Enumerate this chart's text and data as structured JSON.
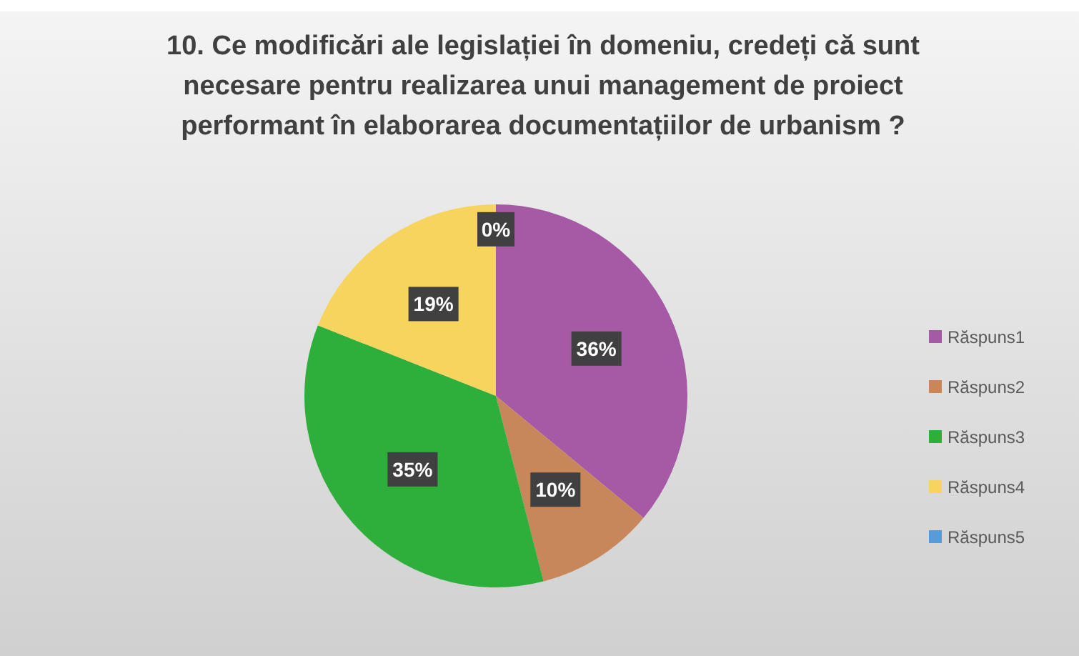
{
  "chart_data": {
    "type": "pie",
    "title": "10. Ce modificări ale legislației în domeniu, credeți că sunt necesare pentru realizarea unui management de proiect performant în elaborarea documentațiilor de urbanism ?",
    "categories": [
      "Răspuns1",
      "Răspuns2",
      "Răspuns3",
      "Răspuns4",
      "Răspuns5"
    ],
    "values": [
      36,
      10,
      35,
      19,
      0
    ],
    "value_labels": [
      "36%",
      "10%",
      "35%",
      "19%",
      "0%"
    ],
    "colors": [
      "#a65aa6",
      "#c8875a",
      "#2eaf3c",
      "#f7d45e",
      "#5b9bd5"
    ],
    "legend": "right"
  }
}
